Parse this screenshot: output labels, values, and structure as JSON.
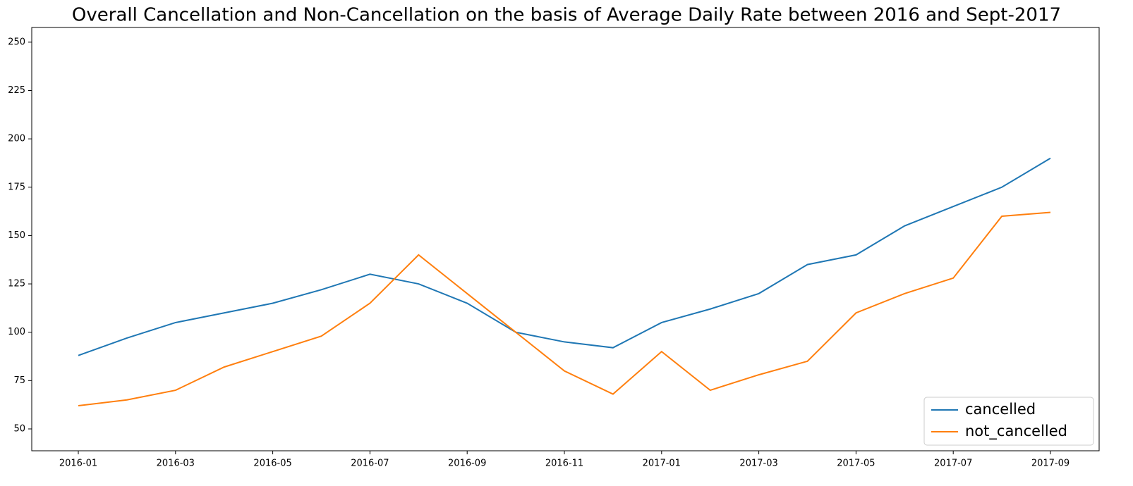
{
  "chart_data": {
    "type": "line",
    "title": "Overall Cancellation and Non-Cancellation on the basis of Average Daily Rate between 2016 and Sept-2017",
    "x": [
      "2016-01",
      "2016-02",
      "2016-03",
      "2016-04",
      "2016-05",
      "2016-06",
      "2016-07",
      "2016-08",
      "2016-09",
      "2016-10",
      "2016-11",
      "2016-12",
      "2017-01",
      "2017-02",
      "2017-03",
      "2017-04",
      "2017-05",
      "2017-06",
      "2017-07",
      "2017-08",
      "2017-09"
    ],
    "series": [
      {
        "name": "cancelled",
        "color": "#1f77b4",
        "values": [
          88,
          97,
          105,
          110,
          115,
          122,
          130,
          125,
          115,
          100,
          95,
          92,
          105,
          112,
          120,
          135,
          140,
          155,
          165,
          175,
          190
        ]
      },
      {
        "name": "not_cancelled",
        "color": "#ff7f0e",
        "values": [
          62,
          65,
          70,
          82,
          90,
          98,
          115,
          140,
          120,
          100,
          80,
          68,
          90,
          70,
          78,
          85,
          110,
          120,
          128,
          160,
          162
        ]
      }
    ],
    "ylim": [
      38.7,
      257.6
    ],
    "yticks": [
      50,
      75,
      100,
      125,
      150,
      175,
      200,
      225,
      250
    ],
    "xticks": [
      "2016-01",
      "2016-03",
      "2016-05",
      "2016-07",
      "2016-09",
      "2016-11",
      "2017-01",
      "2017-03",
      "2017-05",
      "2017-07",
      "2017-09"
    ],
    "legend": "lower right"
  }
}
